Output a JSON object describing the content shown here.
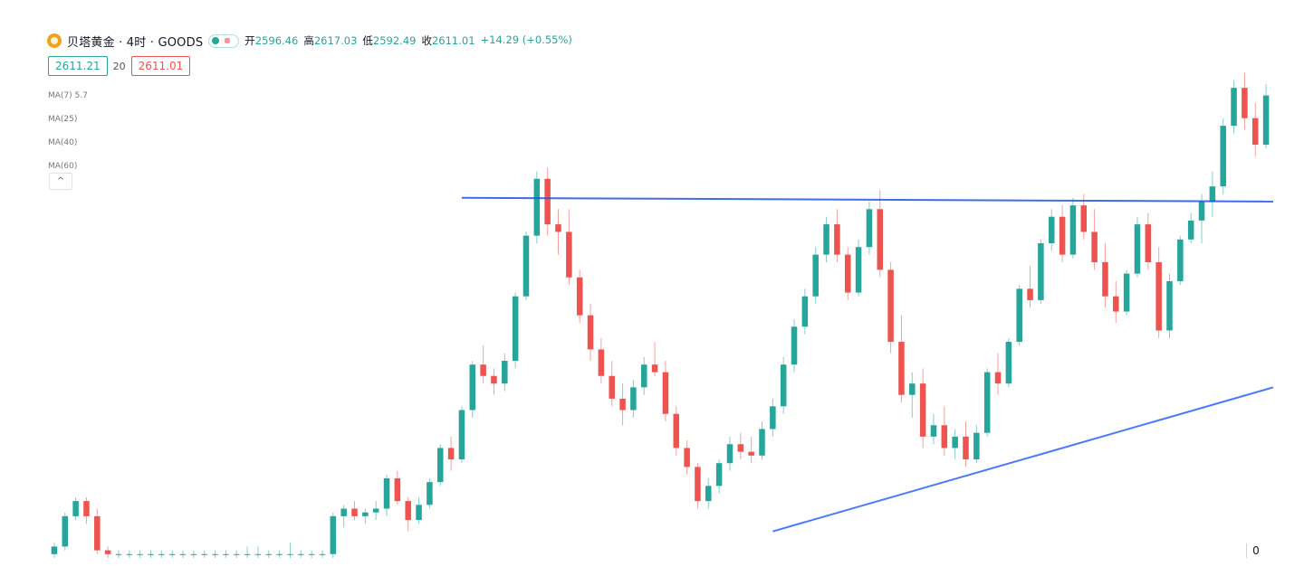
{
  "header": {
    "title": "贝塔黄金 · 4时 · GOODS",
    "ohlc": [
      {
        "label": "开",
        "value": "2596.46"
      },
      {
        "label": "高",
        "value": "2617.03"
      },
      {
        "label": "低",
        "value": "2592.49"
      },
      {
        "label": "收",
        "value": "2611.01"
      }
    ],
    "change": "+14.29 (+0.55%)"
  },
  "prices": {
    "buy": "2611.21",
    "spread": "20",
    "sell": "2611.01"
  },
  "indicators": [
    "MA(7) 5.7",
    "MA(25)",
    "MA(40)",
    "MA(60)"
  ],
  "collapse_label": "^",
  "axis_corner_label": "0",
  "colors": {
    "up": "#26a69a",
    "down": "#ef5350",
    "trendline": "#2962ff",
    "resistance": "#1e53e5"
  },
  "chart_data": {
    "type": "candlestick",
    "y_range": [
      2520,
      2650
    ],
    "up_color": "#26a69a",
    "down_color": "#ef5350",
    "lines": [
      {
        "name": "resistance",
        "color": "#1e53e5",
        "from": {
          "bar": 38,
          "price": 2615
        },
        "to": {
          "bar": 118,
          "price": 2614
        }
      },
      {
        "name": "support",
        "color": "#2962ff",
        "from": {
          "bar": 67,
          "price": 2527
        },
        "to": {
          "bar": 118,
          "price": 2565
        }
      }
    ],
    "candles": [
      [
        2521,
        2524,
        2520,
        2523
      ],
      [
        2523,
        2532,
        2522,
        2531
      ],
      [
        2531,
        2536,
        2530,
        2535
      ],
      [
        2535,
        2536,
        2529,
        2531
      ],
      [
        2531,
        2533,
        2521,
        2522
      ],
      [
        2522,
        2523,
        2520,
        2521
      ],
      [
        2521,
        2522,
        2520,
        2521
      ],
      [
        2521,
        2522,
        2520,
        2521
      ],
      [
        2521,
        2522,
        2520,
        2521
      ],
      [
        2521,
        2522,
        2520,
        2521
      ],
      [
        2521,
        2522,
        2520,
        2521
      ],
      [
        2521,
        2522,
        2520,
        2521
      ],
      [
        2521,
        2522,
        2520,
        2521
      ],
      [
        2521,
        2522,
        2520,
        2521
      ],
      [
        2521,
        2522,
        2520,
        2521
      ],
      [
        2521,
        2522,
        2520,
        2521
      ],
      [
        2521,
        2522,
        2520,
        2521
      ],
      [
        2521,
        2522,
        2520,
        2521
      ],
      [
        2521,
        2523,
        2520,
        2521
      ],
      [
        2521,
        2523,
        2520,
        2521
      ],
      [
        2521,
        2522,
        2520,
        2521
      ],
      [
        2521,
        2522,
        2520,
        2521
      ],
      [
        2521,
        2524,
        2520,
        2521
      ],
      [
        2521,
        2522,
        2520,
        2521
      ],
      [
        2521,
        2522,
        2520,
        2521
      ],
      [
        2521,
        2522,
        2520,
        2521
      ],
      [
        2521,
        2532,
        2520,
        2531
      ],
      [
        2531,
        2534,
        2528,
        2533
      ],
      [
        2533,
        2535,
        2530,
        2531
      ],
      [
        2531,
        2533,
        2529,
        2532
      ],
      [
        2532,
        2535,
        2530,
        2533
      ],
      [
        2533,
        2542,
        2531,
        2541
      ],
      [
        2541,
        2543,
        2534,
        2535
      ],
      [
        2535,
        2536,
        2527,
        2530
      ],
      [
        2530,
        2536,
        2529,
        2534
      ],
      [
        2534,
        2541,
        2533,
        2540
      ],
      [
        2540,
        2550,
        2539,
        2549
      ],
      [
        2549,
        2552,
        2543,
        2546
      ],
      [
        2546,
        2560,
        2545,
        2559
      ],
      [
        2559,
        2572,
        2557,
        2571
      ],
      [
        2571,
        2576,
        2566,
        2568
      ],
      [
        2568,
        2570,
        2563,
        2566
      ],
      [
        2566,
        2574,
        2564,
        2572
      ],
      [
        2572,
        2590,
        2570,
        2589
      ],
      [
        2589,
        2606,
        2588,
        2605
      ],
      [
        2605,
        2622,
        2603,
        2620
      ],
      [
        2620,
        2623,
        2605,
        2608
      ],
      [
        2608,
        2612,
        2600,
        2606
      ],
      [
        2606,
        2612,
        2592,
        2594
      ],
      [
        2594,
        2596,
        2582,
        2584
      ],
      [
        2584,
        2587,
        2572,
        2575
      ],
      [
        2575,
        2578,
        2566,
        2568
      ],
      [
        2568,
        2572,
        2560,
        2562
      ],
      [
        2562,
        2566,
        2555,
        2559
      ],
      [
        2559,
        2567,
        2557,
        2565
      ],
      [
        2565,
        2573,
        2563,
        2571
      ],
      [
        2571,
        2577,
        2568,
        2569
      ],
      [
        2569,
        2572,
        2556,
        2558
      ],
      [
        2558,
        2560,
        2547,
        2549
      ],
      [
        2549,
        2551,
        2542,
        2544
      ],
      [
        2544,
        2545,
        2533,
        2535
      ],
      [
        2535,
        2541,
        2533,
        2539
      ],
      [
        2539,
        2546,
        2537,
        2545
      ],
      [
        2545,
        2552,
        2543,
        2550
      ],
      [
        2550,
        2553,
        2546,
        2548
      ],
      [
        2548,
        2552,
        2545,
        2547
      ],
      [
        2547,
        2556,
        2546,
        2554
      ],
      [
        2554,
        2562,
        2552,
        2560
      ],
      [
        2560,
        2573,
        2558,
        2571
      ],
      [
        2571,
        2583,
        2569,
        2581
      ],
      [
        2581,
        2591,
        2579,
        2589
      ],
      [
        2589,
        2602,
        2587,
        2600
      ],
      [
        2600,
        2610,
        2598,
        2608
      ],
      [
        2608,
        2612,
        2598,
        2600
      ],
      [
        2600,
        2602,
        2588,
        2590
      ],
      [
        2590,
        2604,
        2589,
        2602
      ],
      [
        2602,
        2614,
        2600,
        2612
      ],
      [
        2612,
        2617,
        2594,
        2596
      ],
      [
        2596,
        2598,
        2574,
        2577
      ],
      [
        2577,
        2584,
        2561,
        2563
      ],
      [
        2563,
        2569,
        2557,
        2566
      ],
      [
        2566,
        2570,
        2549,
        2552
      ],
      [
        2552,
        2558,
        2550,
        2555
      ],
      [
        2555,
        2560,
        2547,
        2549
      ],
      [
        2549,
        2554,
        2546,
        2552
      ],
      [
        2552,
        2556,
        2544,
        2546
      ],
      [
        2546,
        2555,
        2545,
        2553
      ],
      [
        2553,
        2570,
        2552,
        2569
      ],
      [
        2569,
        2574,
        2563,
        2566
      ],
      [
        2566,
        2578,
        2565,
        2577
      ],
      [
        2577,
        2592,
        2576,
        2591
      ],
      [
        2591,
        2597,
        2586,
        2588
      ],
      [
        2588,
        2604,
        2587,
        2603
      ],
      [
        2603,
        2612,
        2601,
        2610
      ],
      [
        2610,
        2613,
        2598,
        2600
      ],
      [
        2600,
        2615,
        2599,
        2613
      ],
      [
        2613,
        2616,
        2604,
        2606
      ],
      [
        2606,
        2612,
        2596,
        2598
      ],
      [
        2598,
        2603,
        2586,
        2589
      ],
      [
        2589,
        2593,
        2582,
        2585
      ],
      [
        2585,
        2596,
        2584,
        2595
      ],
      [
        2595,
        2610,
        2594,
        2608
      ],
      [
        2608,
        2611,
        2596,
        2598
      ],
      [
        2598,
        2602,
        2578,
        2580
      ],
      [
        2580,
        2595,
        2578,
        2593
      ],
      [
        2593,
        2605,
        2592,
        2604
      ],
      [
        2604,
        2611,
        2603,
        2609
      ],
      [
        2609,
        2616,
        2603,
        2614
      ],
      [
        2614,
        2622,
        2610,
        2618
      ],
      [
        2618,
        2636,
        2616,
        2634
      ],
      [
        2634,
        2646,
        2632,
        2644
      ],
      [
        2644,
        2648,
        2633,
        2636
      ],
      [
        2636,
        2640,
        2626,
        2629
      ],
      [
        2629,
        2645,
        2628,
        2642
      ]
    ]
  }
}
